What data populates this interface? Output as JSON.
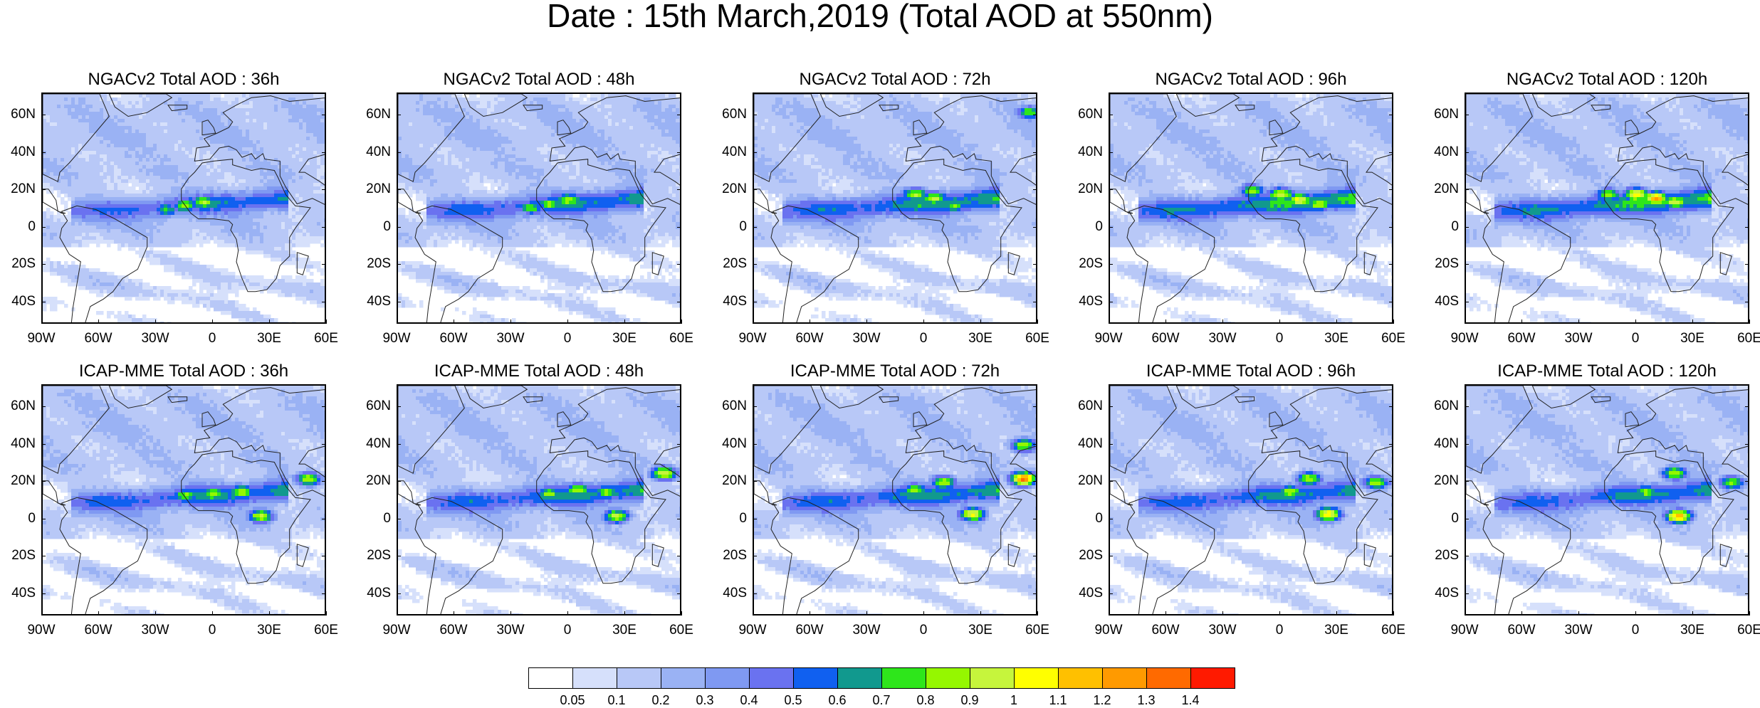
{
  "title": "Date : 15th March,2019 (Total AOD at 550nm)",
  "lat_labels": [
    "60N",
    "40N",
    "20N",
    "0",
    "20S",
    "40S"
  ],
  "lon_labels": [
    "90W",
    "60W",
    "30W",
    "0",
    "30E",
    "60E"
  ],
  "panels": [
    {
      "title": "NGACv2 Total AOD : 36h",
      "model": "NGACv2",
      "lead": "36h",
      "intensity": 0.55,
      "hot": [
        [
          -15,
          12,
          0.85
        ],
        [
          -5,
          14,
          0.9
        ],
        [
          -25,
          10,
          0.75
        ]
      ]
    },
    {
      "title": "NGACv2 Total AOD : 48h",
      "model": "NGACv2",
      "lead": "48h",
      "intensity": 0.6,
      "hot": [
        [
          -10,
          13,
          0.85
        ],
        [
          0,
          15,
          0.9
        ],
        [
          -20,
          11,
          0.78
        ]
      ]
    },
    {
      "title": "NGACv2 Total AOD : 72h",
      "model": "NGACv2",
      "lead": "72h",
      "intensity": 0.65,
      "hot": [
        [
          -5,
          18,
          0.9
        ],
        [
          5,
          16,
          0.95
        ],
        [
          15,
          12,
          0.8
        ],
        [
          55,
          62,
          0.8
        ]
      ]
    },
    {
      "title": "NGACv2 Total AOD : 96h",
      "model": "NGACv2",
      "lead": "96h",
      "intensity": 0.7,
      "hot": [
        [
          0,
          18,
          1.0
        ],
        [
          10,
          15,
          1.05
        ],
        [
          20,
          13,
          0.9
        ],
        [
          -15,
          20,
          0.85
        ]
      ]
    },
    {
      "title": "NGACv2 Total AOD : 120h",
      "model": "NGACv2",
      "lead": "120h",
      "intensity": 0.7,
      "hot": [
        [
          0,
          18,
          1.1
        ],
        [
          10,
          16,
          1.2
        ],
        [
          20,
          14,
          1.0
        ],
        [
          -15,
          18,
          0.85
        ]
      ]
    },
    {
      "title": "ICAP-MME Total AOD : 36h",
      "model": "ICAP-MME",
      "lead": "36h",
      "intensity": 0.6,
      "hot": [
        [
          -15,
          13,
          0.85
        ],
        [
          0,
          14,
          0.9
        ],
        [
          15,
          15,
          0.9
        ],
        [
          50,
          22,
          0.9
        ],
        [
          25,
          2,
          0.95
        ]
      ]
    },
    {
      "title": "ICAP-MME Total AOD : 48h",
      "model": "ICAP-MME",
      "lead": "48h",
      "intensity": 0.62,
      "hot": [
        [
          -10,
          14,
          0.85
        ],
        [
          5,
          16,
          0.9
        ],
        [
          20,
          15,
          0.85
        ],
        [
          50,
          25,
          1.0
        ],
        [
          25,
          2,
          0.95
        ]
      ]
    },
    {
      "title": "ICAP-MME Total AOD : 72h",
      "model": "ICAP-MME",
      "lead": "72h",
      "intensity": 0.62,
      "hot": [
        [
          -5,
          16,
          0.85
        ],
        [
          10,
          20,
          0.9
        ],
        [
          25,
          3,
          1.05
        ],
        [
          52,
          22,
          1.3
        ],
        [
          52,
          40,
          0.9
        ]
      ]
    },
    {
      "title": "ICAP-MME Total AOD : 96h",
      "model": "ICAP-MME",
      "lead": "96h",
      "intensity": 0.6,
      "hot": [
        [
          5,
          15,
          0.9
        ],
        [
          15,
          22,
          0.9
        ],
        [
          25,
          3,
          1.1
        ],
        [
          50,
          20,
          0.9
        ]
      ]
    },
    {
      "title": "ICAP-MME Total AOD : 120h",
      "model": "ICAP-MME",
      "lead": "120h",
      "intensity": 0.6,
      "hot": [
        [
          5,
          15,
          0.85
        ],
        [
          20,
          25,
          0.9
        ],
        [
          22,
          2,
          1.2
        ],
        [
          50,
          20,
          0.85
        ]
      ]
    }
  ],
  "colorbar": {
    "labels": [
      "0.05",
      "0.1",
      "0.2",
      "0.3",
      "0.4",
      "0.5",
      "0.6",
      "0.7",
      "0.8",
      "0.9",
      "1",
      "1.1",
      "1.2",
      "1.3",
      "1.4"
    ],
    "colors": [
      "#ffffff",
      "#d6e0fb",
      "#b8c8f7",
      "#9ab2f4",
      "#7f99f2",
      "#6a72f0",
      "#1060f0",
      "#11998e",
      "#2ee61b",
      "#95f700",
      "#c6f53c",
      "#ffff00",
      "#ffc000",
      "#ff9a00",
      "#ff6a00",
      "#ff1a00"
    ]
  }
}
